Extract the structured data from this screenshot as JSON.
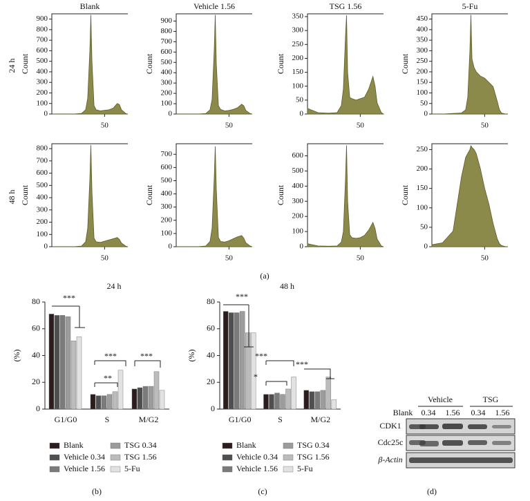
{
  "chart_data": [
    {
      "type": "area",
      "title": "Blank",
      "ylabel": "Count",
      "x": [
        0,
        10,
        20,
        28,
        32,
        34,
        36,
        37,
        38,
        40,
        42,
        46,
        50,
        54,
        58,
        62,
        64,
        66,
        70,
        72
      ],
      "values": [
        0,
        0,
        0,
        5,
        40,
        150,
        600,
        940,
        500,
        80,
        40,
        30,
        35,
        40,
        55,
        100,
        90,
        40,
        5,
        0
      ],
      "color": "#8c8a4b",
      "xlim": [
        0,
        72
      ],
      "xticks": [
        50
      ],
      "ylim": [
        0,
        950
      ],
      "yticks": [
        0,
        100,
        200,
        300,
        400,
        500,
        600,
        700,
        800,
        900
      ]
    },
    {
      "type": "area",
      "title": "Vehicle 1.56",
      "ylabel": "Count",
      "x": [
        0,
        10,
        20,
        28,
        32,
        34,
        36,
        37,
        38,
        40,
        42,
        46,
        50,
        54,
        58,
        62,
        64,
        66,
        70,
        72
      ],
      "values": [
        0,
        0,
        0,
        5,
        40,
        140,
        620,
        960,
        480,
        80,
        45,
        30,
        35,
        45,
        60,
        95,
        80,
        35,
        5,
        0
      ],
      "color": "#8c8a4b",
      "xlim": [
        0,
        72
      ],
      "xticks": [
        50
      ],
      "ylim": [
        0,
        970
      ],
      "yticks": [
        0,
        100,
        200,
        300,
        400,
        500,
        600,
        700,
        800,
        900
      ]
    },
    {
      "type": "area",
      "title": "TSG 1.56",
      "ylabel": "Count",
      "x": [
        0,
        10,
        20,
        28,
        32,
        34,
        36,
        37,
        38,
        40,
        42,
        46,
        50,
        54,
        58,
        62,
        64,
        66,
        70,
        72
      ],
      "values": [
        20,
        5,
        3,
        5,
        30,
        90,
        280,
        355,
        150,
        60,
        55,
        50,
        55,
        60,
        90,
        135,
        100,
        40,
        5,
        0
      ],
      "color": "#8c8a4b",
      "xlim": [
        0,
        72
      ],
      "xticks": [
        50
      ],
      "ylim": [
        0,
        360
      ],
      "yticks": [
        0,
        50,
        100,
        150,
        200,
        250,
        300,
        350
      ]
    },
    {
      "type": "area",
      "title": "5-Fu",
      "ylabel": "Count",
      "x": [
        0,
        10,
        20,
        28,
        32,
        34,
        36,
        37,
        38,
        40,
        42,
        46,
        50,
        54,
        58,
        62,
        64,
        66,
        70,
        72
      ],
      "values": [
        0,
        0,
        3,
        5,
        20,
        80,
        300,
        470,
        260,
        220,
        200,
        180,
        170,
        150,
        130,
        60,
        20,
        5,
        0,
        0
      ],
      "color": "#8c8a4b",
      "xlim": [
        0,
        72
      ],
      "xticks": [
        50
      ],
      "ylim": [
        0,
        475
      ],
      "yticks": [
        0,
        50,
        100,
        150,
        200,
        250,
        300,
        350,
        400,
        450
      ]
    },
    {
      "type": "area",
      "title": null,
      "ylabel": "Count",
      "x": [
        0,
        10,
        20,
        28,
        32,
        34,
        36,
        37,
        38,
        40,
        42,
        46,
        50,
        54,
        58,
        62,
        64,
        66,
        70,
        72
      ],
      "values": [
        0,
        0,
        0,
        5,
        40,
        150,
        550,
        830,
        450,
        70,
        40,
        35,
        45,
        55,
        65,
        75,
        60,
        30,
        5,
        0
      ],
      "color": "#8c8a4b",
      "xlim": [
        0,
        72
      ],
      "xticks": [
        50
      ],
      "ylim": [
        0,
        840
      ],
      "yticks": [
        0,
        100,
        200,
        300,
        400,
        500,
        600,
        700,
        800
      ]
    },
    {
      "type": "area",
      "title": null,
      "ylabel": "Count",
      "x": [
        0,
        10,
        20,
        28,
        32,
        34,
        36,
        37,
        38,
        40,
        42,
        46,
        50,
        54,
        58,
        62,
        64,
        66,
        70,
        72
      ],
      "values": [
        0,
        0,
        0,
        5,
        40,
        140,
        520,
        760,
        430,
        70,
        40,
        35,
        45,
        60,
        75,
        85,
        65,
        30,
        5,
        0
      ],
      "color": "#8c8a4b",
      "xlim": [
        0,
        72
      ],
      "xticks": [
        50
      ],
      "ylim": [
        0,
        780
      ],
      "yticks": [
        0,
        100,
        200,
        300,
        400,
        500,
        600,
        700
      ]
    },
    {
      "type": "area",
      "title": null,
      "ylabel": "Count",
      "x": [
        0,
        10,
        20,
        28,
        32,
        34,
        36,
        37,
        38,
        40,
        42,
        46,
        50,
        54,
        58,
        62,
        64,
        66,
        70,
        72
      ],
      "values": [
        20,
        5,
        3,
        5,
        30,
        100,
        450,
        670,
        300,
        80,
        60,
        55,
        60,
        75,
        110,
        160,
        120,
        50,
        5,
        0
      ],
      "color": "#8c8a4b",
      "xlim": [
        0,
        72
      ],
      "xticks": [
        50
      ],
      "ylim": [
        0,
        680
      ],
      "yticks": [
        0,
        100,
        200,
        300,
        400,
        500,
        600
      ]
    },
    {
      "type": "area",
      "title": null,
      "ylabel": "Count",
      "x": [
        0,
        10,
        20,
        28,
        32,
        34,
        36,
        37,
        38,
        40,
        42,
        46,
        50,
        54,
        58,
        62,
        64,
        66,
        70,
        72
      ],
      "values": [
        5,
        10,
        40,
        180,
        230,
        240,
        250,
        260,
        255,
        250,
        240,
        200,
        150,
        110,
        60,
        20,
        8,
        3,
        0,
        0
      ],
      "color": "#8c8a4b",
      "xlim": [
        0,
        72
      ],
      "xticks": [
        50
      ],
      "ylim": [
        0,
        265
      ],
      "yticks": [
        0,
        50,
        100,
        150,
        200,
        250
      ]
    },
    {
      "type": "bar",
      "title": "24 h",
      "ylabel": "(%)",
      "categories": [
        "G1/G0",
        "S",
        "M/G2"
      ],
      "series": [
        {
          "name": "Blank",
          "color": "#2b1d1d",
          "values": [
            71,
            11,
            15
          ]
        },
        {
          "name": "Vehicle 0.34",
          "color": "#4f4f4f",
          "values": [
            70,
            10,
            16
          ]
        },
        {
          "name": "Vehicle 1.56",
          "color": "#7b7b7b",
          "values": [
            70,
            10,
            17
          ]
        },
        {
          "name": "TSG 0.34",
          "color": "#9c9c9c",
          "values": [
            69,
            11,
            17
          ]
        },
        {
          "name": "TSG 1.56",
          "color": "#bcbcbc",
          "values": [
            51,
            13,
            28
          ]
        },
        {
          "name": "5-Fu",
          "color": "#e2e2e2",
          "values": [
            54,
            29,
            14
          ]
        }
      ],
      "ylim": [
        0,
        80
      ],
      "yticks": [
        0,
        20,
        40,
        60,
        80
      ],
      "annotations": [
        "***",
        "***",
        "**",
        "***"
      ]
    },
    {
      "type": "bar",
      "title": "48 h",
      "ylabel": "(%)",
      "categories": [
        "G1/G0",
        "S",
        "M/G2"
      ],
      "series": [
        {
          "name": "Blank",
          "color": "#2b1d1d",
          "values": [
            73,
            11,
            14
          ]
        },
        {
          "name": "Vehicle 0.34",
          "color": "#4f4f4f",
          "values": [
            72,
            11,
            13
          ]
        },
        {
          "name": "Vehicle 1.56",
          "color": "#7b7b7b",
          "values": [
            72,
            12,
            13
          ]
        },
        {
          "name": "TSG 0.34",
          "color": "#9c9c9c",
          "values": [
            73,
            11,
            14
          ]
        },
        {
          "name": "TSG 1.56",
          "color": "#bcbcbc",
          "values": [
            57,
            15,
            24
          ]
        },
        {
          "name": "5-Fu",
          "color": "#e2e2e2",
          "values": [
            57,
            24,
            7
          ]
        }
      ],
      "ylim": [
        0,
        80
      ],
      "yticks": [
        0,
        20,
        40,
        60,
        80
      ],
      "annotations": [
        "***",
        "***",
        "*",
        "***"
      ]
    }
  ],
  "row_labels": [
    "24 h",
    "48 h"
  ],
  "panel_labels": [
    "(a)",
    "(b)",
    "(c)",
    "(d)"
  ],
  "blot": {
    "groups": [
      "Vehicle",
      "TSG"
    ],
    "lanes": [
      "Blank",
      "0.34",
      "1.56",
      "0.34",
      "1.56"
    ],
    "proteins": [
      "CDK1",
      "Cdc25c",
      "β-Actin"
    ]
  }
}
